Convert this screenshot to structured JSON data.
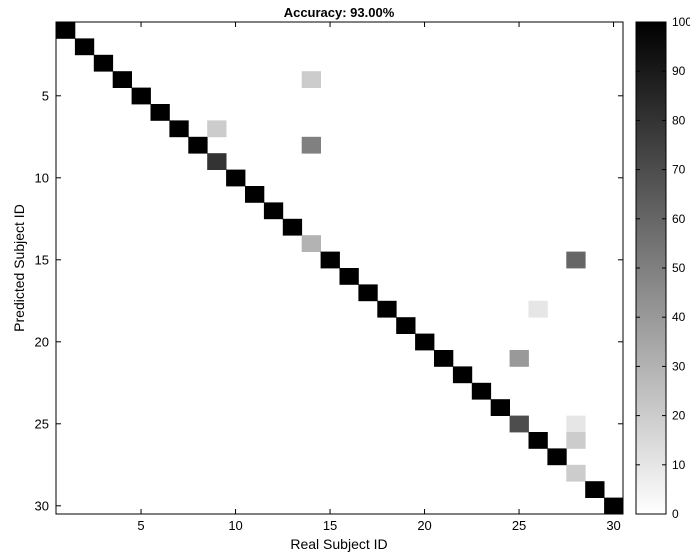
{
  "chart_data": {
    "type": "heatmap",
    "title": "Accuracy: 93.00%",
    "xlabel": "Real Subject ID",
    "ylabel": "Predicted Subject ID",
    "x_range": [
      1,
      30
    ],
    "y_range": [
      1,
      30
    ],
    "y_direction": "down",
    "x_ticks": [
      5,
      10,
      15,
      20,
      25,
      30
    ],
    "y_ticks": [
      5,
      10,
      15,
      20,
      25,
      30
    ],
    "colormap": "gray-inverted (0 = white, 100 = black)",
    "colorbar": {
      "range": [
        0,
        100
      ],
      "ticks": [
        0,
        10,
        20,
        30,
        40,
        50,
        60,
        70,
        80,
        90,
        100
      ],
      "position": "right"
    },
    "diagonal_default": 100,
    "cells": [
      {
        "x": 1,
        "y": 1,
        "value": 100
      },
      {
        "x": 2,
        "y": 2,
        "value": 100
      },
      {
        "x": 3,
        "y": 3,
        "value": 100
      },
      {
        "x": 4,
        "y": 4,
        "value": 100
      },
      {
        "x": 5,
        "y": 5,
        "value": 100
      },
      {
        "x": 6,
        "y": 6,
        "value": 100
      },
      {
        "x": 7,
        "y": 7,
        "value": 100
      },
      {
        "x": 8,
        "y": 8,
        "value": 100
      },
      {
        "x": 9,
        "y": 9,
        "value": 80
      },
      {
        "x": 10,
        "y": 10,
        "value": 100
      },
      {
        "x": 11,
        "y": 11,
        "value": 100
      },
      {
        "x": 12,
        "y": 12,
        "value": 100
      },
      {
        "x": 13,
        "y": 13,
        "value": 100
      },
      {
        "x": 14,
        "y": 14,
        "value": 30
      },
      {
        "x": 15,
        "y": 15,
        "value": 100
      },
      {
        "x": 16,
        "y": 16,
        "value": 100
      },
      {
        "x": 17,
        "y": 17,
        "value": 100
      },
      {
        "x": 18,
        "y": 18,
        "value": 100
      },
      {
        "x": 19,
        "y": 19,
        "value": 100
      },
      {
        "x": 20,
        "y": 20,
        "value": 100
      },
      {
        "x": 21,
        "y": 21,
        "value": 100
      },
      {
        "x": 22,
        "y": 22,
        "value": 100
      },
      {
        "x": 23,
        "y": 23,
        "value": 100
      },
      {
        "x": 24,
        "y": 24,
        "value": 100
      },
      {
        "x": 25,
        "y": 25,
        "value": 70
      },
      {
        "x": 26,
        "y": 26,
        "value": 100
      },
      {
        "x": 27,
        "y": 27,
        "value": 100
      },
      {
        "x": 28,
        "y": 28,
        "value": 20
      },
      {
        "x": 29,
        "y": 29,
        "value": 100
      },
      {
        "x": 30,
        "y": 30,
        "value": 100
      },
      {
        "x": 14,
        "y": 4,
        "value": 20
      },
      {
        "x": 9,
        "y": 7,
        "value": 20
      },
      {
        "x": 14,
        "y": 8,
        "value": 50
      },
      {
        "x": 28,
        "y": 15,
        "value": 60
      },
      {
        "x": 26,
        "y": 18,
        "value": 10
      },
      {
        "x": 25,
        "y": 21,
        "value": 40
      },
      {
        "x": 28,
        "y": 25,
        "value": 10
      },
      {
        "x": 28,
        "y": 26,
        "value": 20
      }
    ]
  }
}
